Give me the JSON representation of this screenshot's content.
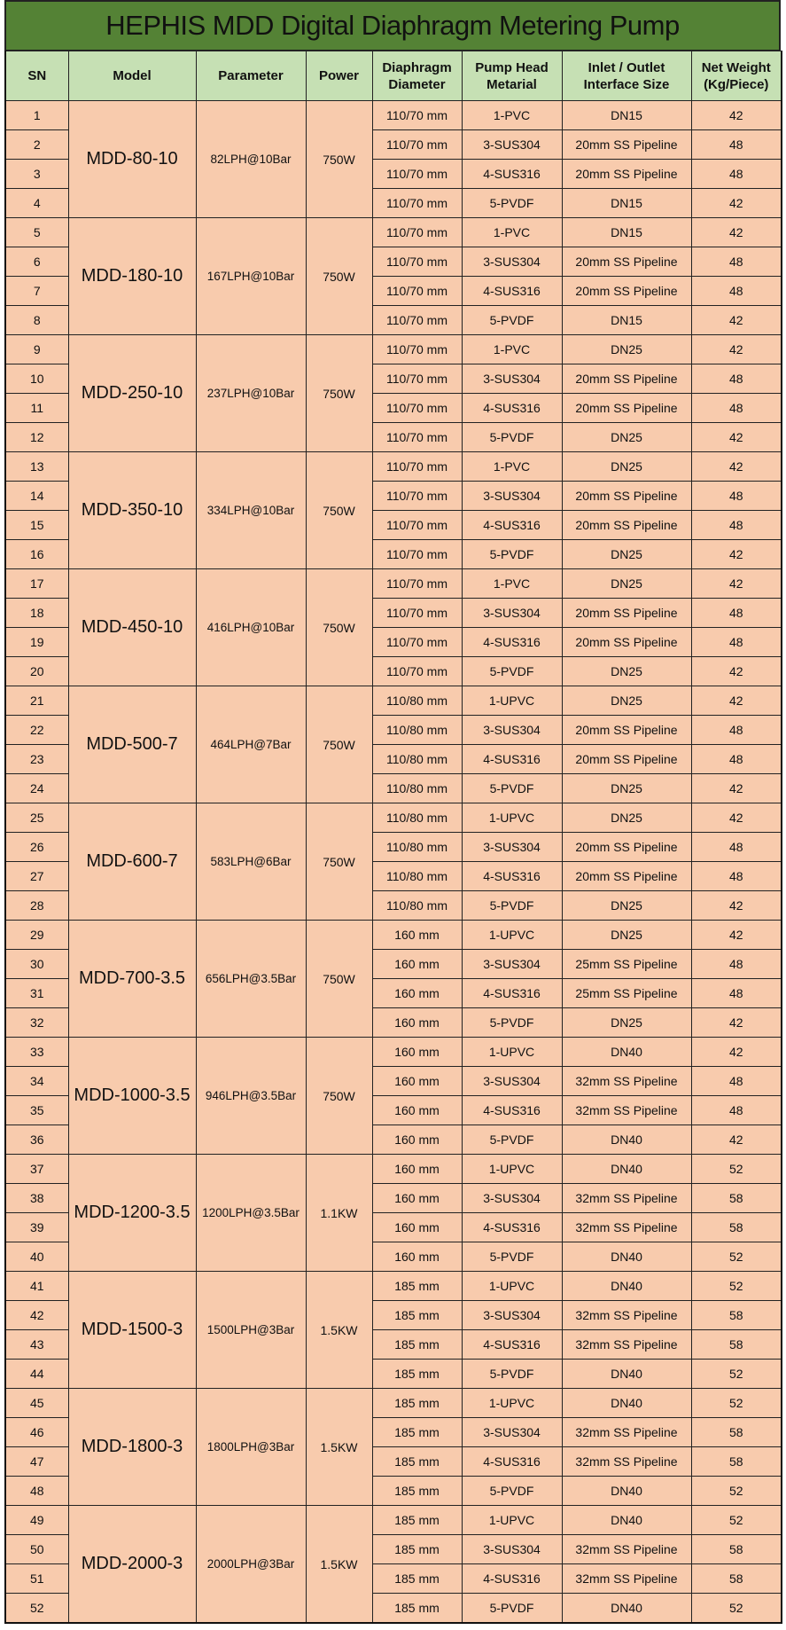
{
  "title": "HEPHIS MDD Digital Diaphragm Metering Pump",
  "colors": {
    "title_bg": "#548235",
    "header_bg": "#c6e0b4",
    "cell_bg": "#f8cbad"
  },
  "headers": [
    "SN",
    "Model",
    "Parameter",
    "Power",
    "Diaphragm\nDiameter",
    "Pump Head\nMetarial",
    "Inlet / Outlet\nInterface Size",
    "Net Weight\n(Kg/Piece)"
  ],
  "groups": [
    {
      "model": "MDD-80-10",
      "parameter": "82LPH@10Bar",
      "power": "750W",
      "rows": [
        {
          "sn": "1",
          "diameter": "110/70 mm",
          "material": "1-PVC",
          "size": "DN15",
          "weight": "42"
        },
        {
          "sn": "2",
          "diameter": "110/70 mm",
          "material": "3-SUS304",
          "size": "20mm SS Pipeline",
          "weight": "48"
        },
        {
          "sn": "3",
          "diameter": "110/70 mm",
          "material": "4-SUS316",
          "size": "20mm SS Pipeline",
          "weight": "48"
        },
        {
          "sn": "4",
          "diameter": "110/70 mm",
          "material": "5-PVDF",
          "size": "DN15",
          "weight": "42"
        }
      ]
    },
    {
      "model": "MDD-180-10",
      "parameter": "167LPH@10Bar",
      "power": "750W",
      "rows": [
        {
          "sn": "5",
          "diameter": "110/70 mm",
          "material": "1-PVC",
          "size": "DN15",
          "weight": "42"
        },
        {
          "sn": "6",
          "diameter": "110/70 mm",
          "material": "3-SUS304",
          "size": "20mm SS Pipeline",
          "weight": "48"
        },
        {
          "sn": "7",
          "diameter": "110/70 mm",
          "material": "4-SUS316",
          "size": "20mm SS Pipeline",
          "weight": "48"
        },
        {
          "sn": "8",
          "diameter": "110/70 mm",
          "material": "5-PVDF",
          "size": "DN15",
          "weight": "42"
        }
      ]
    },
    {
      "model": "MDD-250-10",
      "parameter": "237LPH@10Bar",
      "power": "750W",
      "rows": [
        {
          "sn": "9",
          "diameter": "110/70 mm",
          "material": "1-PVC",
          "size": "DN25",
          "weight": "42"
        },
        {
          "sn": "10",
          "diameter": "110/70 mm",
          "material": "3-SUS304",
          "size": "20mm SS Pipeline",
          "weight": "48"
        },
        {
          "sn": "11",
          "diameter": "110/70 mm",
          "material": "4-SUS316",
          "size": "20mm SS Pipeline",
          "weight": "48"
        },
        {
          "sn": "12",
          "diameter": "110/70 mm",
          "material": "5-PVDF",
          "size": "DN25",
          "weight": "42"
        }
      ]
    },
    {
      "model": "MDD-350-10",
      "parameter": "334LPH@10Bar",
      "power": "750W",
      "rows": [
        {
          "sn": "13",
          "diameter": "110/70 mm",
          "material": "1-PVC",
          "size": "DN25",
          "weight": "42"
        },
        {
          "sn": "14",
          "diameter": "110/70 mm",
          "material": "3-SUS304",
          "size": "20mm SS Pipeline",
          "weight": "48"
        },
        {
          "sn": "15",
          "diameter": "110/70 mm",
          "material": "4-SUS316",
          "size": "20mm SS Pipeline",
          "weight": "48"
        },
        {
          "sn": "16",
          "diameter": "110/70 mm",
          "material": "5-PVDF",
          "size": "DN25",
          "weight": "42"
        }
      ]
    },
    {
      "model": "MDD-450-10",
      "parameter": "416LPH@10Bar",
      "power": "750W",
      "rows": [
        {
          "sn": "17",
          "diameter": "110/70 mm",
          "material": "1-PVC",
          "size": "DN25",
          "weight": "42"
        },
        {
          "sn": "18",
          "diameter": "110/70 mm",
          "material": "3-SUS304",
          "size": "20mm SS Pipeline",
          "weight": "48"
        },
        {
          "sn": "19",
          "diameter": "110/70 mm",
          "material": "4-SUS316",
          "size": "20mm SS Pipeline",
          "weight": "48"
        },
        {
          "sn": "20",
          "diameter": "110/70 mm",
          "material": "5-PVDF",
          "size": "DN25",
          "weight": "42"
        }
      ]
    },
    {
      "model": "MDD-500-7",
      "parameter": "464LPH@7Bar",
      "power": "750W",
      "rows": [
        {
          "sn": "21",
          "diameter": "110/80 mm",
          "material": "1-UPVC",
          "size": "DN25",
          "weight": "42"
        },
        {
          "sn": "22",
          "diameter": "110/80 mm",
          "material": "3-SUS304",
          "size": "20mm SS Pipeline",
          "weight": "48"
        },
        {
          "sn": "23",
          "diameter": "110/80 mm",
          "material": "4-SUS316",
          "size": "20mm SS Pipeline",
          "weight": "48"
        },
        {
          "sn": "24",
          "diameter": "110/80 mm",
          "material": "5-PVDF",
          "size": "DN25",
          "weight": "42"
        }
      ]
    },
    {
      "model": "MDD-600-7",
      "parameter": "583LPH@6Bar",
      "power": "750W",
      "rows": [
        {
          "sn": "25",
          "diameter": "110/80 mm",
          "material": "1-UPVC",
          "size": "DN25",
          "weight": "42"
        },
        {
          "sn": "26",
          "diameter": "110/80 mm",
          "material": "3-SUS304",
          "size": "20mm SS Pipeline",
          "weight": "48"
        },
        {
          "sn": "27",
          "diameter": "110/80 mm",
          "material": "4-SUS316",
          "size": "20mm SS Pipeline",
          "weight": "48"
        },
        {
          "sn": "28",
          "diameter": "110/80 mm",
          "material": "5-PVDF",
          "size": "DN25",
          "weight": "42"
        }
      ]
    },
    {
      "model": "MDD-700-3.5",
      "parameter": "656LPH@3.5Bar",
      "power": "750W",
      "rows": [
        {
          "sn": "29",
          "diameter": "160 mm",
          "material": "1-UPVC",
          "size": "DN25",
          "weight": "42"
        },
        {
          "sn": "30",
          "diameter": "160 mm",
          "material": "3-SUS304",
          "size": "25mm SS Pipeline",
          "weight": "48"
        },
        {
          "sn": "31",
          "diameter": "160 mm",
          "material": "4-SUS316",
          "size": "25mm SS Pipeline",
          "weight": "48"
        },
        {
          "sn": "32",
          "diameter": "160 mm",
          "material": "5-PVDF",
          "size": "DN25",
          "weight": "42"
        }
      ]
    },
    {
      "model": "MDD-1000-3.5",
      "parameter": "946LPH@3.5Bar",
      "power": "750W",
      "rows": [
        {
          "sn": "33",
          "diameter": "160 mm",
          "material": "1-UPVC",
          "size": "DN40",
          "weight": "42"
        },
        {
          "sn": "34",
          "diameter": "160 mm",
          "material": "3-SUS304",
          "size": "32mm SS Pipeline",
          "weight": "48"
        },
        {
          "sn": "35",
          "diameter": "160 mm",
          "material": "4-SUS316",
          "size": "32mm SS Pipeline",
          "weight": "48"
        },
        {
          "sn": "36",
          "diameter": "160 mm",
          "material": "5-PVDF",
          "size": "DN40",
          "weight": "42"
        }
      ]
    },
    {
      "model": "MDD-1200-3.5",
      "parameter": "1200LPH@3.5Bar",
      "power": "1.1KW",
      "rows": [
        {
          "sn": "37",
          "diameter": "160 mm",
          "material": "1-UPVC",
          "size": "DN40",
          "weight": "52"
        },
        {
          "sn": "38",
          "diameter": "160 mm",
          "material": "3-SUS304",
          "size": "32mm SS Pipeline",
          "weight": "58"
        },
        {
          "sn": "39",
          "diameter": "160 mm",
          "material": "4-SUS316",
          "size": "32mm SS Pipeline",
          "weight": "58"
        },
        {
          "sn": "40",
          "diameter": "160 mm",
          "material": "5-PVDF",
          "size": "DN40",
          "weight": "52"
        }
      ]
    },
    {
      "model": "MDD-1500-3",
      "parameter": "1500LPH@3Bar",
      "power": "1.5KW",
      "rows": [
        {
          "sn": "41",
          "diameter": "185 mm",
          "material": "1-UPVC",
          "size": "DN40",
          "weight": "52"
        },
        {
          "sn": "42",
          "diameter": "185 mm",
          "material": "3-SUS304",
          "size": "32mm SS Pipeline",
          "weight": "58"
        },
        {
          "sn": "43",
          "diameter": "185 mm",
          "material": "4-SUS316",
          "size": "32mm SS Pipeline",
          "weight": "58"
        },
        {
          "sn": "44",
          "diameter": "185 mm",
          "material": "5-PVDF",
          "size": "DN40",
          "weight": "52"
        }
      ]
    },
    {
      "model": "MDD-1800-3",
      "parameter": "1800LPH@3Bar",
      "power": "1.5KW",
      "rows": [
        {
          "sn": "45",
          "diameter": "185 mm",
          "material": "1-UPVC",
          "size": "DN40",
          "weight": "52"
        },
        {
          "sn": "46",
          "diameter": "185 mm",
          "material": "3-SUS304",
          "size": "32mm SS Pipeline",
          "weight": "58"
        },
        {
          "sn": "47",
          "diameter": "185 mm",
          "material": "4-SUS316",
          "size": "32mm SS Pipeline",
          "weight": "58"
        },
        {
          "sn": "48",
          "diameter": "185 mm",
          "material": "5-PVDF",
          "size": "DN40",
          "weight": "52"
        }
      ]
    },
    {
      "model": "MDD-2000-3",
      "parameter": "2000LPH@3Bar",
      "power": "1.5KW",
      "rows": [
        {
          "sn": "49",
          "diameter": "185 mm",
          "material": "1-UPVC",
          "size": "DN40",
          "weight": "52"
        },
        {
          "sn": "50",
          "diameter": "185 mm",
          "material": "3-SUS304",
          "size": "32mm SS Pipeline",
          "weight": "58"
        },
        {
          "sn": "51",
          "diameter": "185 mm",
          "material": "4-SUS316",
          "size": "32mm SS Pipeline",
          "weight": "58"
        },
        {
          "sn": "52",
          "diameter": "185 mm",
          "material": "5-PVDF",
          "size": "DN40",
          "weight": "52"
        }
      ]
    }
  ]
}
